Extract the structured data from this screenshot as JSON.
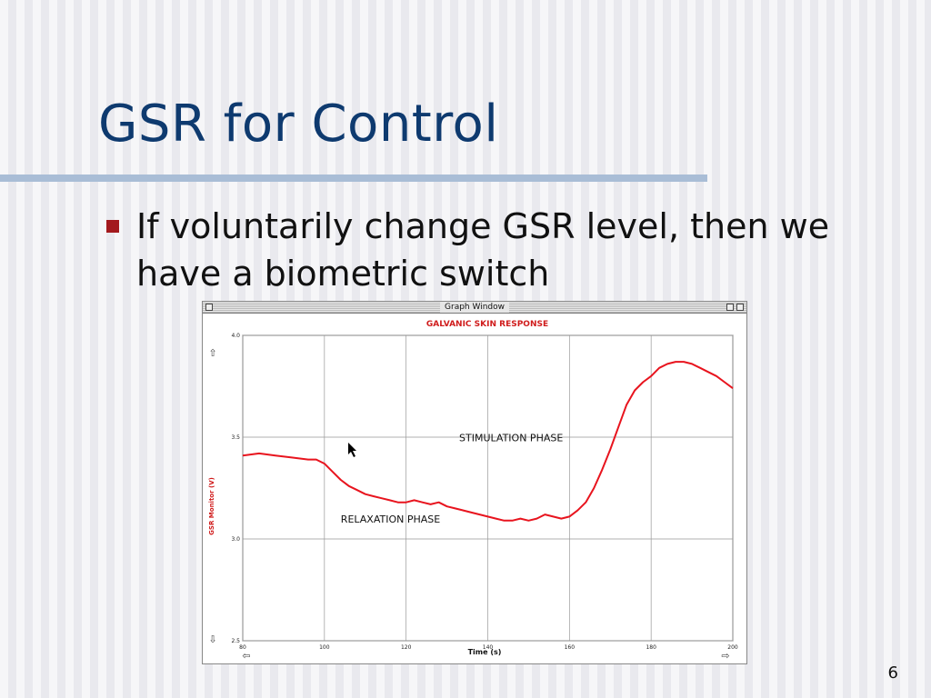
{
  "slide": {
    "title": "GSR for Control",
    "bullet": "If voluntarily change GSR level, then we have a biometric switch",
    "page_number": "6"
  },
  "window": {
    "title": "Graph Window"
  },
  "chart_data": {
    "type": "line",
    "title": "GALVANIC SKIN RESPONSE",
    "xlabel": "Time (s)",
    "ylabel": "GSR Monitor (V)",
    "xlim": [
      80,
      200
    ],
    "ylim": [
      2.5,
      4.0
    ],
    "x_ticks": [
      "80",
      "100",
      "120",
      "140",
      "160",
      "180",
      "200"
    ],
    "y_ticks": [
      "2.5",
      "3.0",
      "3.5",
      "4.0"
    ],
    "grid": true,
    "series": [
      {
        "color": "#e8141e",
        "x": [
          80,
          84,
          88,
          92,
          96,
          98,
          100,
          102,
          104,
          106,
          108,
          110,
          112,
          114,
          116,
          118,
          120,
          122,
          124,
          126,
          128,
          130,
          132,
          134,
          136,
          138,
          140,
          142,
          144,
          146,
          148,
          150,
          152,
          154,
          156,
          158,
          160,
          162,
          164,
          166,
          168,
          170,
          172,
          174,
          176,
          178,
          180,
          182,
          184,
          186,
          188,
          190,
          192,
          194,
          196,
          198,
          200
        ],
        "y": [
          3.41,
          3.42,
          3.41,
          3.4,
          3.39,
          3.39,
          3.37,
          3.33,
          3.29,
          3.26,
          3.24,
          3.22,
          3.21,
          3.2,
          3.19,
          3.18,
          3.18,
          3.19,
          3.18,
          3.17,
          3.18,
          3.16,
          3.15,
          3.14,
          3.13,
          3.12,
          3.11,
          3.1,
          3.09,
          3.09,
          3.1,
          3.09,
          3.1,
          3.12,
          3.11,
          3.1,
          3.11,
          3.14,
          3.18,
          3.25,
          3.34,
          3.44,
          3.55,
          3.66,
          3.73,
          3.77,
          3.8,
          3.84,
          3.86,
          3.87,
          3.87,
          3.86,
          3.84,
          3.82,
          3.8,
          3.77,
          3.74
        ]
      }
    ],
    "annotations": [
      {
        "text": "RELAXATION  PHASE",
        "x": 104,
        "y": 3.08
      },
      {
        "text": "STIMULATION  PHASE",
        "x": 133,
        "y": 3.48
      }
    ]
  }
}
